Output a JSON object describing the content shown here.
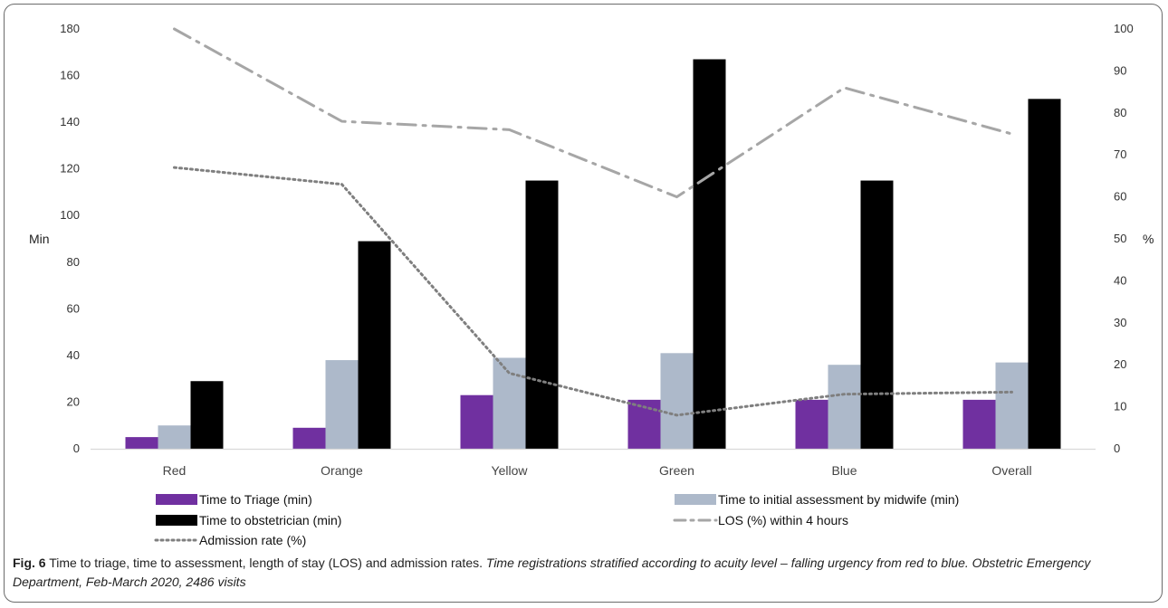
{
  "chart_data": {
    "type": "bar",
    "categories": [
      "Red",
      "Orange",
      "Yellow",
      "Green",
      "Blue",
      "Overall"
    ],
    "series": [
      {
        "name": "Time to Triage (min)",
        "type": "bar",
        "axis": "left",
        "color": "#7030a0",
        "values": [
          5,
          9,
          23,
          21,
          21,
          21
        ]
      },
      {
        "name": "Time to initial assessment by midwife (min)",
        "type": "bar",
        "axis": "left",
        "color": "#adb9ca",
        "values": [
          10,
          38,
          39,
          41,
          36,
          37
        ]
      },
      {
        "name": "Time to obstetrician (min)",
        "type": "bar",
        "axis": "left",
        "color": "#000000",
        "values": [
          29,
          89,
          115,
          167,
          115,
          150
        ]
      },
      {
        "name": "LOS (%) within 4 hours",
        "type": "line",
        "style": "dash-dot",
        "axis": "right",
        "color": "#a6a6a6",
        "values": [
          100,
          78,
          76,
          60,
          86,
          75
        ]
      },
      {
        "name": "Admission rate (%)",
        "type": "line",
        "style": "dotted",
        "axis": "right",
        "color": "#7f7f7f",
        "values": [
          67,
          63,
          18,
          8,
          13,
          13.5
        ]
      }
    ],
    "ylabel": "Min",
    "y2label": "%",
    "ylim": [
      0,
      180
    ],
    "y2lim": [
      0,
      100
    ],
    "yticks": [
      "0",
      "20",
      "40",
      "60",
      "80",
      "100",
      "120",
      "140",
      "160",
      "180"
    ],
    "y2ticks": [
      "0",
      "10",
      "20",
      "30",
      "40",
      "50",
      "60",
      "70",
      "80",
      "90",
      "100"
    ],
    "grid": false,
    "legend": "bottom"
  },
  "caption": {
    "fig_label": "Fig. 6",
    "title": " Time to triage, time to assessment, length of stay (LOS) and admission rates. ",
    "subtitle": "Time registrations stratified according to acuity level – falling urgency from red to blue. Obstetric Emergency Department, Feb-March 2020, 2486 visits"
  }
}
